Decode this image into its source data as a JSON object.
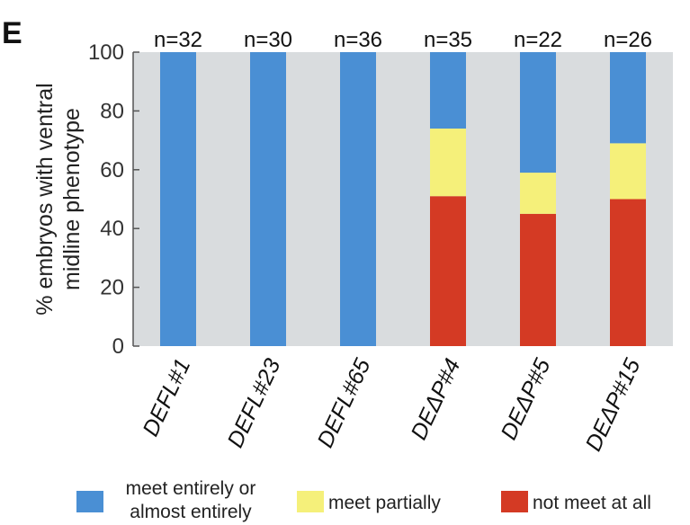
{
  "panel_label": "E",
  "chart_data": {
    "type": "bar",
    "stacked": true,
    "categories": [
      "DEFL#1",
      "DEFL#23",
      "DEFL#65",
      "DEΔP#4",
      "DEΔP#5",
      "DEΔP#15"
    ],
    "n_labels": [
      "n=32",
      "n=30",
      "n=36",
      "n=35",
      "n=22",
      "n=26"
    ],
    "series": [
      {
        "name": "not meet at all",
        "color": "#d43a24",
        "values": [
          0,
          0,
          0,
          51,
          45,
          50
        ]
      },
      {
        "name": "meet partially",
        "color": "#f5f07a",
        "values": [
          0,
          0,
          0,
          23,
          14,
          19
        ]
      },
      {
        "name": "meet entirely or almost entirely",
        "color": "#4a8fd4",
        "values": [
          100,
          100,
          100,
          26,
          41,
          31
        ]
      }
    ],
    "ylabel_lines": [
      "% embryos with ventral",
      "midline  phenotype"
    ],
    "xlabel": "",
    "ylim": [
      0,
      100
    ],
    "yticks": [
      0,
      20,
      40,
      60,
      80,
      100
    ],
    "grid": false,
    "plot_background": "#d9dcde",
    "legend": {
      "position": "bottom",
      "items": [
        {
          "lines": [
            "meet entirely or",
            "almost entirely"
          ],
          "color": "#4a8fd4"
        },
        {
          "lines": [
            "meet partially"
          ],
          "color": "#f5f07a"
        },
        {
          "lines": [
            "not meet at all"
          ],
          "color": "#d43a24"
        }
      ]
    }
  }
}
